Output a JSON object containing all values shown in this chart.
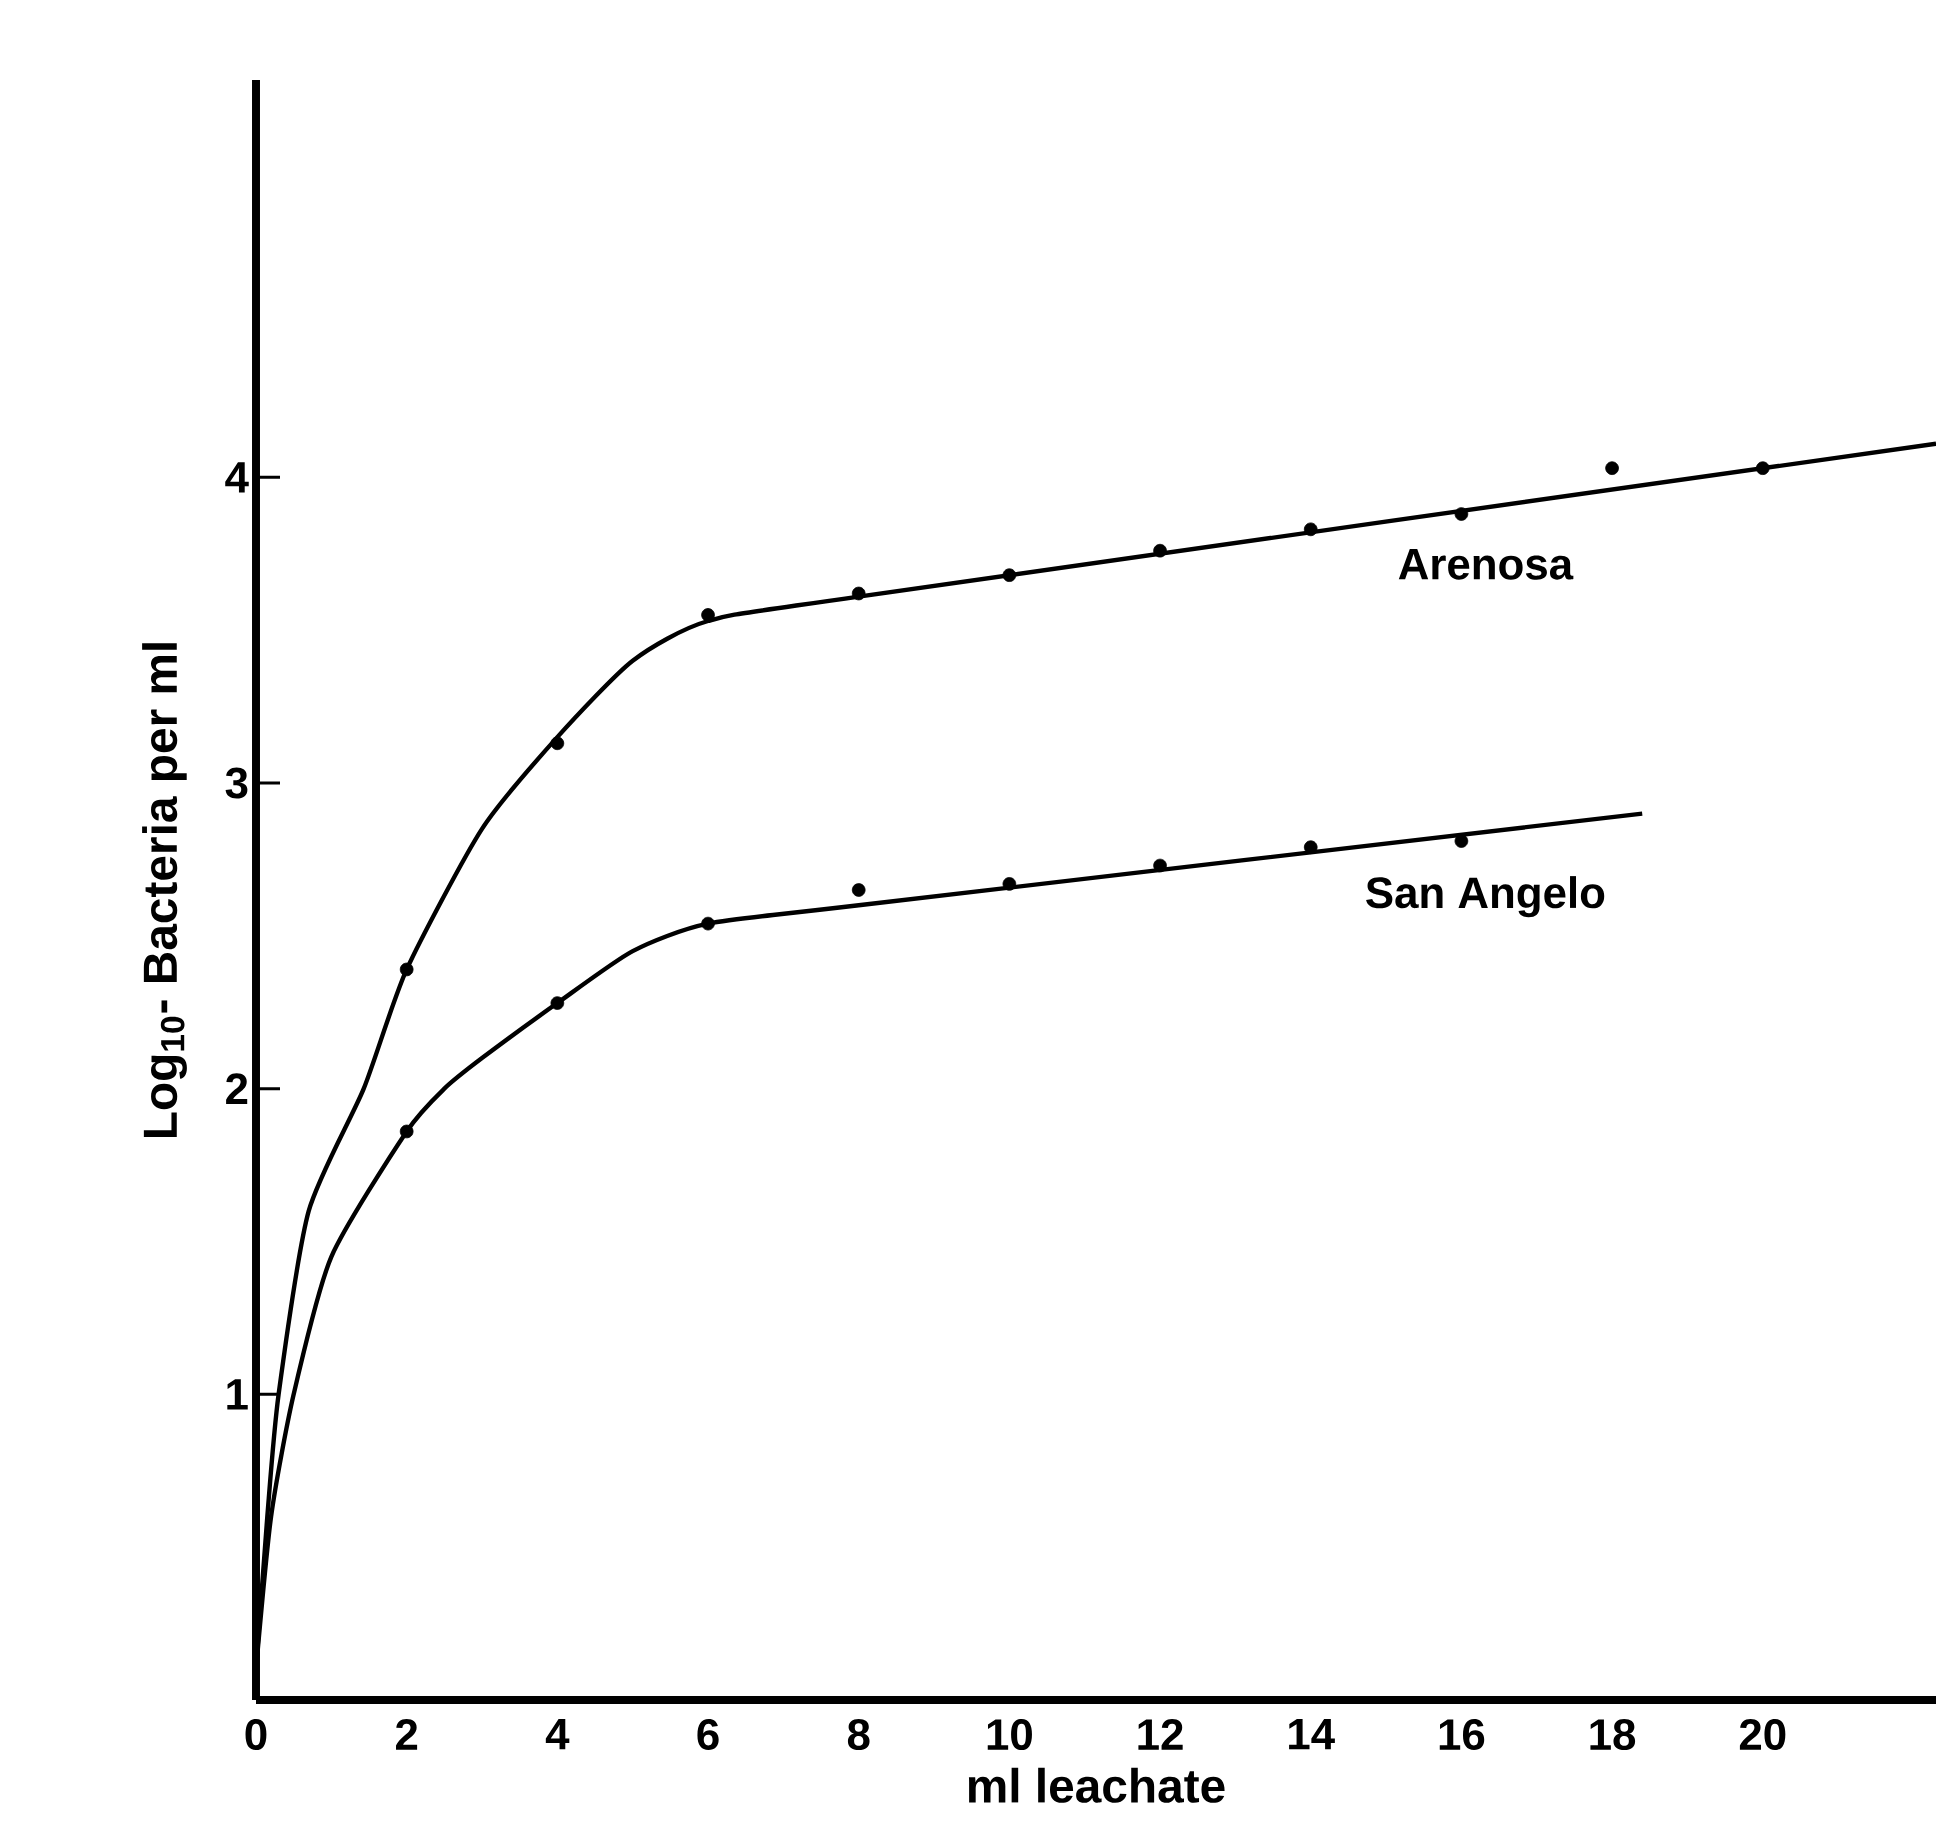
{
  "chart_data": {
    "type": "scatter",
    "xlabel": "ml leachate",
    "ylabel": "Log$_{10}$- Bacteria per ml",
    "xlim": [
      0,
      22.3
    ],
    "ylim": [
      0,
      5.3
    ],
    "xticks": [
      0,
      2,
      4,
      6,
      8,
      10,
      12,
      14,
      16,
      18,
      20
    ],
    "yticks": [
      1,
      2,
      3,
      4
    ],
    "grid": false,
    "series": [
      {
        "name": "Arenosa",
        "marker": "circle",
        "color": "#000000",
        "x": [
          2,
          4,
          6,
          8,
          10,
          12,
          14,
          16,
          18,
          20
        ],
        "values": [
          2.39,
          3.13,
          3.55,
          3.62,
          3.68,
          3.76,
          3.83,
          3.88,
          4.03,
          4.03
        ]
      },
      {
        "name": "San Angelo",
        "marker": "circle",
        "color": "#000000",
        "x": [
          2,
          4,
          6,
          8,
          10,
          12,
          14,
          16
        ],
        "values": [
          1.86,
          2.28,
          2.54,
          2.65,
          2.67,
          2.73,
          2.79,
          2.81
        ]
      },
      {
        "type": "line",
        "marker": "none",
        "color": "#000000",
        "x": [
          0,
          0.15,
          0.3,
          0.7,
          1.43,
          2,
          3,
          4,
          5,
          6,
          8,
          22.3
        ],
        "values": [
          0.1,
          0.6,
          1.0,
          1.6,
          2.0,
          2.39,
          2.85,
          3.15,
          3.4,
          3.53,
          3.61,
          4.11
        ]
      },
      {
        "type": "line",
        "marker": "none",
        "color": "#000000",
        "x": [
          0,
          0.2,
          0.5,
          1,
          2,
          2.5,
          3,
          4,
          5,
          6,
          8,
          18.4
        ],
        "values": [
          0.1,
          0.6,
          1.0,
          1.45,
          1.86,
          2.0,
          2.1,
          2.28,
          2.45,
          2.54,
          2.6,
          2.9
        ]
      }
    ]
  }
}
